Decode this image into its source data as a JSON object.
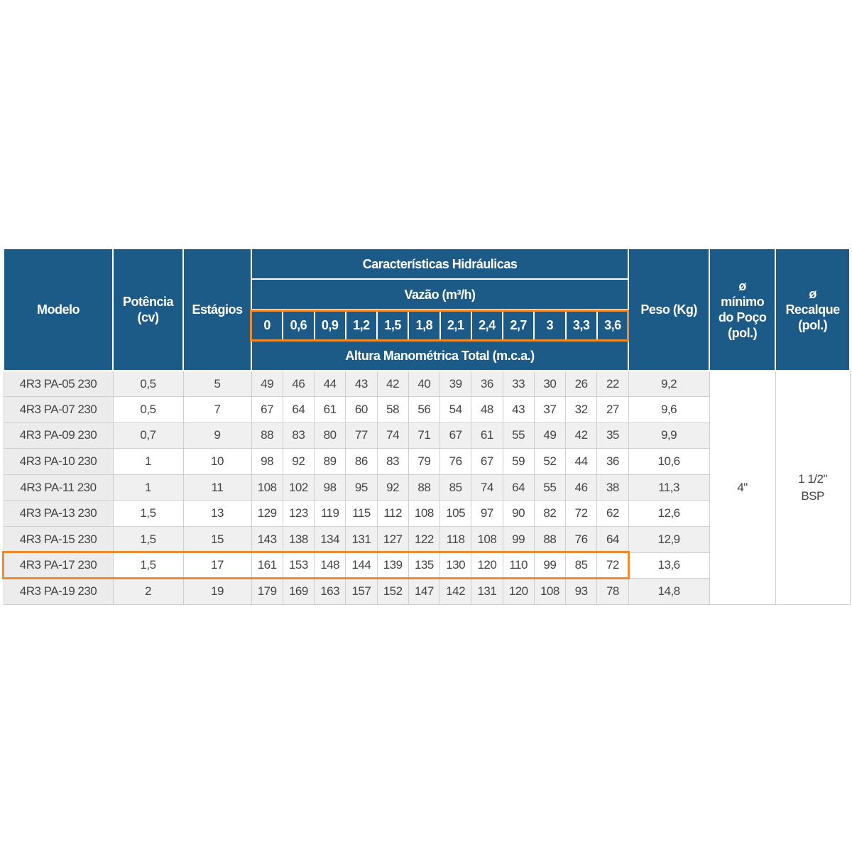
{
  "table": {
    "headers": {
      "model": "Modelo",
      "power": [
        "Potência",
        "(cv)"
      ],
      "stages": "Estágios",
      "hydraulics": "Características Hidráulicas",
      "flow": "Vazão (m³/h)",
      "flows": [
        "0",
        "0,6",
        "0,9",
        "1,2",
        "1,5",
        "1,8",
        "2,1",
        "2,4",
        "2,7",
        "3",
        "3,3",
        "3,6"
      ],
      "head": "Altura Manométrica Total (m.c.a.)",
      "weight": "Peso (Kg)",
      "well": [
        "ø",
        "mínimo",
        "do Poço",
        "(pol.)"
      ],
      "outlet": [
        "ø",
        "Recalque",
        "(pol.)"
      ]
    },
    "rows": [
      {
        "model": "4R3 PA-05 230",
        "power": "0,5",
        "stages": "5",
        "heads": [
          "49",
          "46",
          "44",
          "43",
          "42",
          "40",
          "39",
          "36",
          "33",
          "30",
          "26",
          "22"
        ],
        "weight": "9,2"
      },
      {
        "model": "4R3 PA-07 230",
        "power": "0,5",
        "stages": "7",
        "heads": [
          "67",
          "64",
          "61",
          "60",
          "58",
          "56",
          "54",
          "48",
          "43",
          "37",
          "32",
          "27"
        ],
        "weight": "9,6"
      },
      {
        "model": "4R3 PA-09 230",
        "power": "0,7",
        "stages": "9",
        "heads": [
          "88",
          "83",
          "80",
          "77",
          "74",
          "71",
          "67",
          "61",
          "55",
          "49",
          "42",
          "35"
        ],
        "weight": "9,9"
      },
      {
        "model": "4R3 PA-10 230",
        "power": "1",
        "stages": "10",
        "heads": [
          "98",
          "92",
          "89",
          "86",
          "83",
          "79",
          "76",
          "67",
          "59",
          "52",
          "44",
          "36"
        ],
        "weight": "10,6"
      },
      {
        "model": "4R3 PA-11 230",
        "power": "1",
        "stages": "11",
        "heads": [
          "108",
          "102",
          "98",
          "95",
          "92",
          "88",
          "85",
          "74",
          "64",
          "55",
          "46",
          "38"
        ],
        "weight": "11,3"
      },
      {
        "model": "4R3 PA-13 230",
        "power": "1,5",
        "stages": "13",
        "heads": [
          "129",
          "123",
          "119",
          "115",
          "112",
          "108",
          "105",
          "97",
          "90",
          "82",
          "72",
          "62"
        ],
        "weight": "12,6"
      },
      {
        "model": "4R3 PA-15 230",
        "power": "1,5",
        "stages": "15",
        "heads": [
          "143",
          "138",
          "134",
          "131",
          "127",
          "122",
          "118",
          "108",
          "99",
          "88",
          "76",
          "64"
        ],
        "weight": "12,9"
      },
      {
        "model": "4R3 PA-17 230",
        "power": "1,5",
        "stages": "17",
        "heads": [
          "161",
          "153",
          "148",
          "144",
          "139",
          "135",
          "130",
          "120",
          "110",
          "99",
          "85",
          "72"
        ],
        "weight": "13,6"
      },
      {
        "model": "4R3 PA-19 230",
        "power": "2",
        "stages": "19",
        "heads": [
          "179",
          "169",
          "163",
          "157",
          "152",
          "147",
          "142",
          "131",
          "120",
          "108",
          "93",
          "78"
        ],
        "weight": "14,8"
      }
    ],
    "well_value": "4\"",
    "outlet_value": [
      "1 1/2\"",
      "BSP"
    ]
  }
}
